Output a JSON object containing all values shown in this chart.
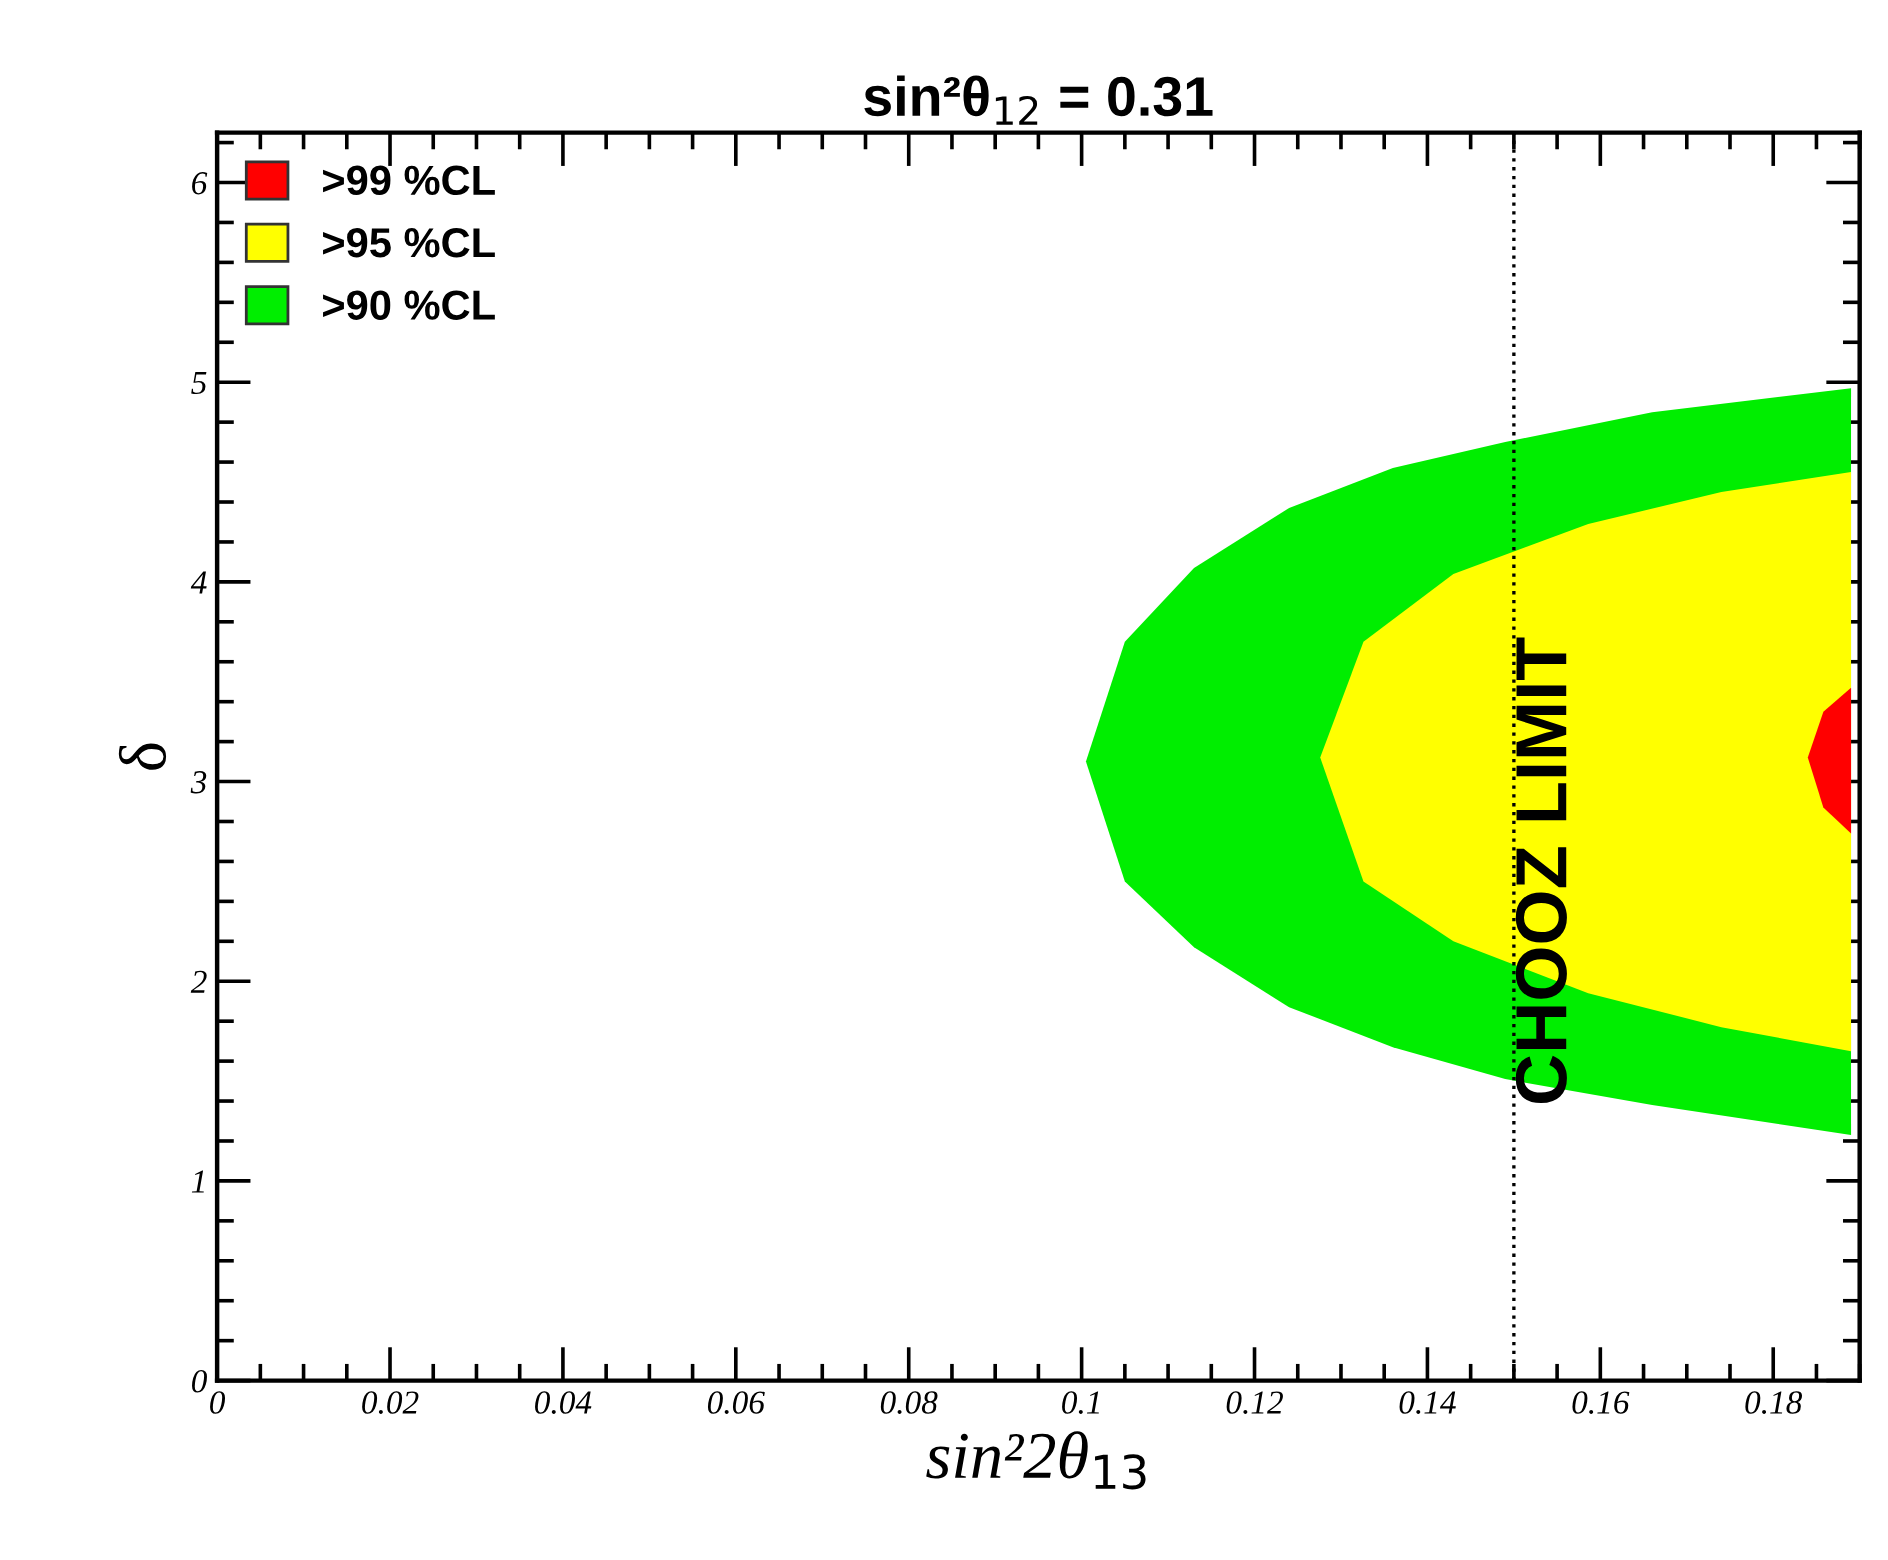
{
  "chart_data": {
    "type": "area",
    "title": "sin²θ$_{12}$ = 0.31",
    "xlabel": "sin²2θ$_{13}$",
    "ylabel": "δ",
    "series": [
      {
        "name": ">99 %CL",
        "color": "#ff0000",
        "x": [
          0.184,
          0.1858,
          0.189,
          0.189,
          0.1858
        ],
        "values": [
          3.12,
          3.35,
          3.47,
          2.74,
          2.87
        ]
      },
      {
        "name": ">95 %CL",
        "color": "#ffff00",
        "x": [
          0.1276,
          0.1326,
          0.143,
          0.1586,
          0.174,
          0.189,
          0.189,
          0.174,
          0.1586,
          0.143,
          0.1326
        ],
        "values": [
          3.12,
          3.7,
          4.04,
          4.29,
          4.45,
          4.55,
          1.65,
          1.77,
          1.94,
          2.2,
          2.5
        ]
      },
      {
        "name": ">90 %CL",
        "color": "#00ee00",
        "x": [
          0.1005,
          0.105,
          0.113,
          0.124,
          0.136,
          0.149,
          0.166,
          0.189,
          0.189,
          0.166,
          0.149,
          0.136,
          0.124,
          0.113,
          0.105
        ],
        "values": [
          3.1,
          3.7,
          4.07,
          4.37,
          4.57,
          4.7,
          4.85,
          4.97,
          1.23,
          1.38,
          1.51,
          1.67,
          1.87,
          2.17,
          2.5
        ]
      }
    ],
    "ref_lines": [
      {
        "axis": "x",
        "value": 0.15,
        "label": "CHOOZ LIMIT",
        "line_style": "dotted"
      }
    ],
    "xlim": [
      0,
      0.19
    ],
    "ylim": [
      0,
      6.25
    ],
    "xticks": [
      0,
      0.02,
      0.04,
      0.06,
      0.08,
      0.1,
      0.12,
      0.14,
      0.16,
      0.18
    ],
    "yticks": [
      0,
      1,
      2,
      3,
      4,
      5,
      6
    ],
    "grid": false,
    "legend": "top left"
  }
}
